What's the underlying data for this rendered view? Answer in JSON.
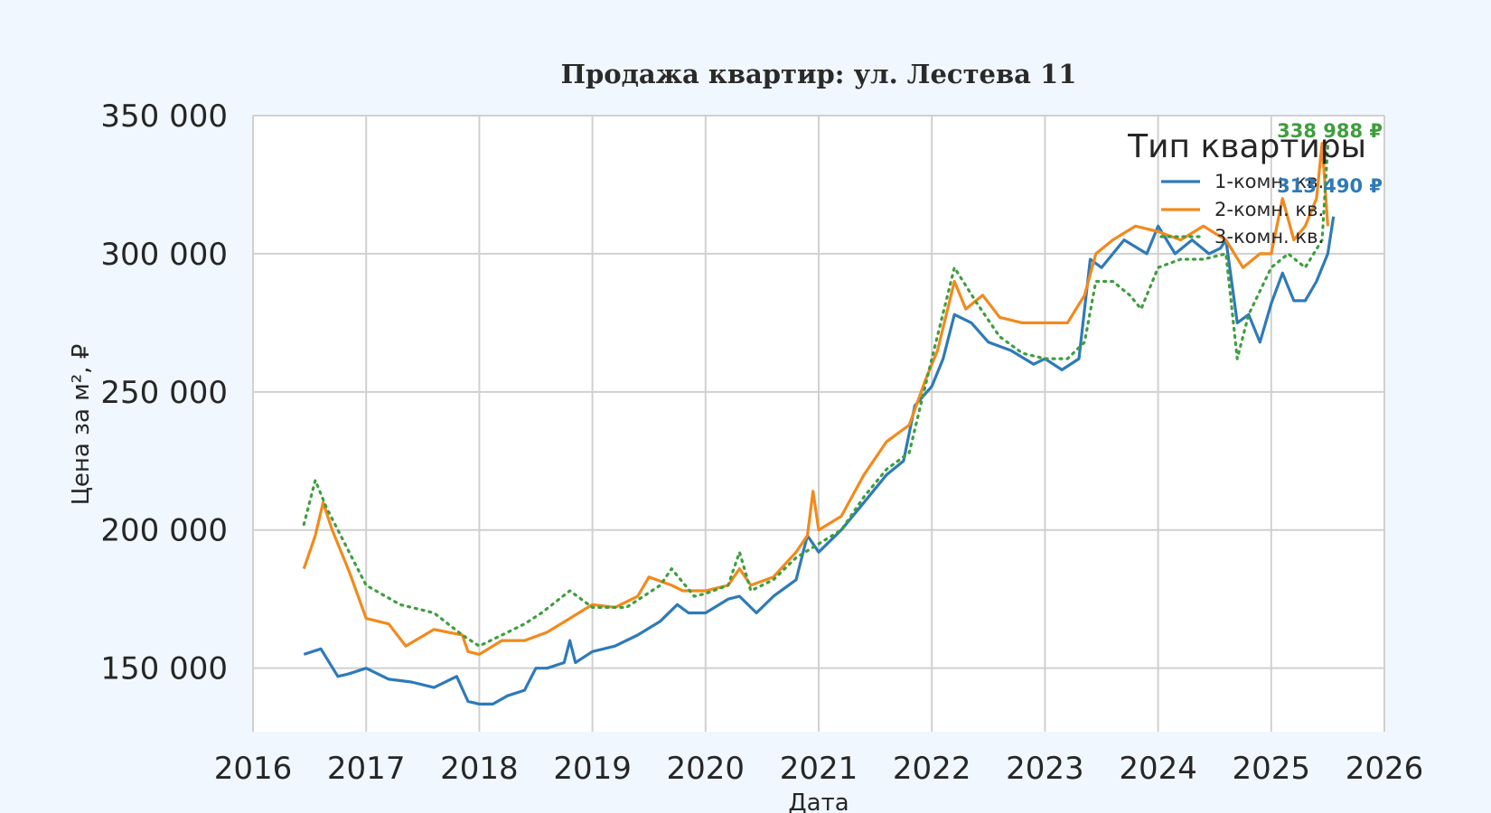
{
  "chart_data": {
    "type": "line",
    "title": "Продажа квартир: ул. Лестева 11",
    "xlabel": "Дата",
    "ylabel": "Цена за м², ₽",
    "xlim": [
      2016,
      2026
    ],
    "ylim": [
      127000,
      350000
    ],
    "xticks": [
      2016,
      2017,
      2018,
      2019,
      2020,
      2021,
      2022,
      2023,
      2024,
      2025,
      2026
    ],
    "xtick_labels": [
      "2016",
      "2017",
      "2018",
      "2019",
      "2020",
      "2021",
      "2022",
      "2023",
      "2024",
      "2025",
      "2026"
    ],
    "yticks": [
      150000,
      200000,
      250000,
      300000,
      350000
    ],
    "ytick_labels": [
      "150 000",
      "200 000",
      "250 000",
      "300 000",
      "350 000"
    ],
    "grid": true,
    "legend": {
      "title": "Тип квартиры",
      "placement": "top-right"
    },
    "series": [
      {
        "name": "1-комн. кв.",
        "color": "#2e7ab8",
        "style": "solid",
        "last_label": "313 490 ₽",
        "x": [
          2016.45,
          2016.6,
          2016.75,
          2016.85,
          2017.0,
          2017.2,
          2017.4,
          2017.6,
          2017.8,
          2017.9,
          2018.0,
          2018.12,
          2018.25,
          2018.4,
          2018.5,
          2018.6,
          2018.75,
          2018.8,
          2018.85,
          2019.0,
          2019.2,
          2019.4,
          2019.6,
          2019.75,
          2019.85,
          2020.0,
          2020.2,
          2020.3,
          2020.45,
          2020.6,
          2020.8,
          2020.9,
          2021.0,
          2021.2,
          2021.4,
          2021.6,
          2021.75,
          2021.85,
          2022.0,
          2022.1,
          2022.2,
          2022.35,
          2022.5,
          2022.7,
          2022.9,
          2023.0,
          2023.15,
          2023.3,
          2023.4,
          2023.5,
          2023.7,
          2023.9,
          2024.0,
          2024.15,
          2024.3,
          2024.45,
          2024.55,
          2024.6,
          2024.7,
          2024.8,
          2024.9,
          2025.0,
          2025.1,
          2025.2,
          2025.3,
          2025.4,
          2025.5,
          2025.55
        ],
        "values": [
          155000,
          157000,
          147000,
          148000,
          150000,
          146000,
          145000,
          143000,
          147000,
          138000,
          137000,
          137000,
          140000,
          142000,
          150000,
          150000,
          152000,
          160000,
          152000,
          156000,
          158000,
          162000,
          167000,
          173000,
          170000,
          170000,
          175000,
          176000,
          170000,
          176000,
          182000,
          198000,
          192000,
          200000,
          210000,
          220000,
          225000,
          245000,
          252000,
          262000,
          278000,
          275000,
          268000,
          265000,
          260000,
          262000,
          258000,
          262000,
          298000,
          295000,
          305000,
          300000,
          310000,
          300000,
          305000,
          300000,
          302000,
          305000,
          275000,
          278000,
          268000,
          282000,
          293000,
          283000,
          283000,
          290000,
          300000,
          313490
        ]
      },
      {
        "name": "2-комн. кв.",
        "color": "#f28a1c",
        "style": "solid",
        "last_label": "",
        "x": [
          2016.45,
          2016.55,
          2016.62,
          2016.7,
          2016.85,
          2017.0,
          2017.2,
          2017.35,
          2017.6,
          2017.85,
          2017.9,
          2018.0,
          2018.2,
          2018.4,
          2018.6,
          2018.8,
          2019.0,
          2019.2,
          2019.4,
          2019.5,
          2019.7,
          2019.8,
          2020.0,
          2020.2,
          2020.3,
          2020.4,
          2020.6,
          2020.8,
          2020.9,
          2020.95,
          2021.0,
          2021.2,
          2021.4,
          2021.6,
          2021.8,
          2021.95,
          2022.05,
          2022.2,
          2022.3,
          2022.45,
          2022.6,
          2022.8,
          2023.0,
          2023.2,
          2023.35,
          2023.45,
          2023.6,
          2023.8,
          2024.0,
          2024.2,
          2024.4,
          2024.6,
          2024.75,
          2024.9,
          2025.0,
          2025.1,
          2025.2,
          2025.3,
          2025.4,
          2025.45,
          2025.5
        ],
        "values": [
          186000,
          198000,
          210000,
          200000,
          185000,
          168000,
          166000,
          158000,
          164000,
          162000,
          156000,
          155000,
          160000,
          160000,
          163000,
          168000,
          173000,
          172000,
          176000,
          183000,
          180000,
          178000,
          178000,
          180000,
          186000,
          180000,
          183000,
          192000,
          198000,
          214000,
          200000,
          205000,
          220000,
          232000,
          238000,
          255000,
          265000,
          290000,
          280000,
          285000,
          277000,
          275000,
          275000,
          275000,
          285000,
          300000,
          305000,
          310000,
          308000,
          305000,
          310000,
          305000,
          295000,
          300000,
          300000,
          320000,
          305000,
          310000,
          320000,
          340000,
          310000
        ]
      },
      {
        "name": "3-комн. кв.",
        "color": "#3f9e3f",
        "style": "dotted",
        "last_label": "338 988 ₽",
        "x": [
          2016.45,
          2016.55,
          2016.65,
          2016.75,
          2016.85,
          2017.0,
          2017.3,
          2017.6,
          2017.85,
          2018.0,
          2018.2,
          2018.4,
          2018.55,
          2018.8,
          2019.0,
          2019.3,
          2019.6,
          2019.7,
          2019.9,
          2020.0,
          2020.2,
          2020.3,
          2020.4,
          2020.6,
          2020.8,
          2021.0,
          2021.2,
          2021.4,
          2021.6,
          2021.8,
          2021.9,
          2022.0,
          2022.2,
          2022.4,
          2022.6,
          2022.8,
          2023.0,
          2023.2,
          2023.35,
          2023.45,
          2023.6,
          2023.75,
          2023.85,
          2024.0,
          2024.2,
          2024.4,
          2024.6,
          2024.7,
          2024.8,
          2025.0,
          2025.15,
          2025.3,
          2025.45,
          2025.5
        ],
        "values": [
          202000,
          218000,
          208000,
          200000,
          192000,
          180000,
          173000,
          170000,
          162000,
          158000,
          162000,
          166000,
          170000,
          178000,
          172000,
          172000,
          180000,
          186000,
          176000,
          177000,
          180000,
          192000,
          178000,
          182000,
          190000,
          195000,
          200000,
          212000,
          222000,
          228000,
          245000,
          262000,
          295000,
          282000,
          270000,
          264000,
          262000,
          262000,
          268000,
          290000,
          290000,
          285000,
          280000,
          295000,
          298000,
          298000,
          300000,
          262000,
          278000,
          295000,
          300000,
          295000,
          305000,
          338988
        ]
      }
    ]
  }
}
